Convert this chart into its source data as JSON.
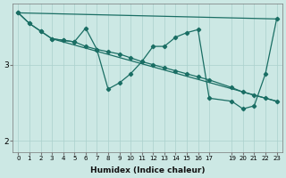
{
  "xlabel": "Humidex (Indice chaleur)",
  "background_color": "#cce8e4",
  "line_color": "#1a6e64",
  "grid_color": "#aad0cc",
  "xlim": [
    -0.5,
    23.5
  ],
  "ylim": [
    1.85,
    3.8
  ],
  "yticks": [
    2,
    3
  ],
  "xticks": [
    0,
    1,
    2,
    3,
    4,
    5,
    6,
    7,
    8,
    9,
    10,
    11,
    12,
    13,
    14,
    15,
    16,
    17,
    19,
    20,
    21,
    22,
    23
  ],
  "smooth_x": [
    0,
    1,
    2,
    3,
    4,
    5,
    6,
    7,
    8,
    9,
    10,
    11,
    12,
    13,
    14,
    15,
    16,
    17,
    19,
    20,
    21,
    22,
    23
  ],
  "smooth_y": [
    3.68,
    3.54,
    3.44,
    3.34,
    3.32,
    3.3,
    3.24,
    3.2,
    3.17,
    3.14,
    3.09,
    3.04,
    3.0,
    2.96,
    2.92,
    2.88,
    2.84,
    2.8,
    2.7,
    2.64,
    2.6,
    2.56,
    2.52
  ],
  "zigzag_x": [
    0,
    1,
    2,
    3,
    4,
    5,
    6,
    7,
    8,
    9,
    10,
    11,
    12,
    13,
    14,
    15,
    16,
    17,
    19,
    20,
    21,
    22,
    23
  ],
  "zigzag_y": [
    3.68,
    3.54,
    3.44,
    3.34,
    3.32,
    3.3,
    3.48,
    3.2,
    2.68,
    2.76,
    2.88,
    3.04,
    3.24,
    3.24,
    3.36,
    3.42,
    3.46,
    2.56,
    2.52,
    2.42,
    2.46,
    2.88,
    3.6
  ],
  "trend1_x": [
    0,
    23
  ],
  "trend1_y": [
    3.68,
    3.6
  ],
  "trend2_x": [
    3,
    23
  ],
  "trend2_y": [
    3.34,
    2.52
  ]
}
